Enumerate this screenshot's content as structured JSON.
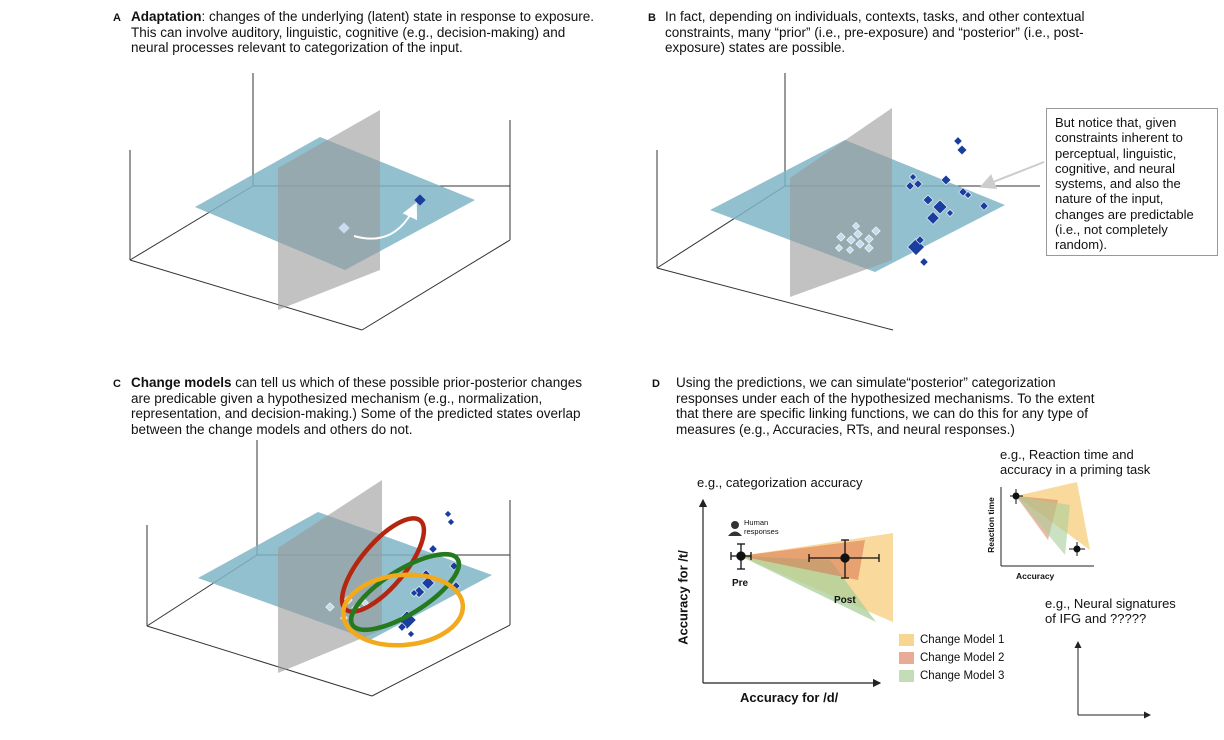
{
  "panelA": {
    "letter": "A",
    "title": "Adaptation",
    "text": ": changes of the underlying (latent) state in response to exposure. This can involve auditory, linguistic, cognitive (e.g., decision-making) and neural processes relevant to categorization of the input."
  },
  "panelB": {
    "letter": "B",
    "text": "In fact, depending on individuals, contexts, tasks, and other contextual constraints, many “prior” (i.e., pre-exposure) and “posterior” (i.e., post-exposure) states are possible.",
    "callout": "But notice that, given constraints inherent to perceptual, linguistic, cognitive, and neural systems, and also the nature of the input, changes are predictable (i.e., not completely random)."
  },
  "panelC": {
    "letter": "C",
    "title": "Change models",
    "text": " can tell us which of these possible prior-posterior changes are predicable given a hypothesized mechanism (e.g., normalization, representation, and decision-making.) Some of the predicted states overlap between the change models and others do not."
  },
  "panelD": {
    "letter": "D",
    "text": "Using the predictions, we can simulate“posterior” categorization responses under each of the hypothesized mechanisms. To the extent that there are specific linking functions, we can do this for any type of measures (e.g., Accuracies, RTs, and neural responses.)",
    "accuracy_title": "e.g., categorization accuracy",
    "ylabel": "Accuracy for /t/",
    "xlabel": "Accuracy for /d/",
    "human_label": "Human responses",
    "pre_label": "Pre",
    "post_label": "Post",
    "legend": [
      {
        "name": "Change Model 1",
        "color": "#f5b94a"
      },
      {
        "name": "Change Model 2",
        "color": "#d9734f"
      },
      {
        "name": "Change Model 3",
        "color": "#a9cf9a"
      }
    ],
    "rt_title": "e.g., Reaction time and accuracy in a priming task",
    "rt_ylabel": "Reaction time",
    "rt_xlabel": "Accuracy",
    "neural_title": "e.g., Neural signatures of IFG and ?????"
  },
  "colors": {
    "plane_blue": "#7fb5c6",
    "plane_gray": "#9a9a9a",
    "point_dark": "#1a3ea0",
    "point_light": "#c7dcef",
    "ellipse_red": "#b5260f",
    "ellipse_green": "#257a1f",
    "ellipse_orange": "#f3a91c"
  }
}
